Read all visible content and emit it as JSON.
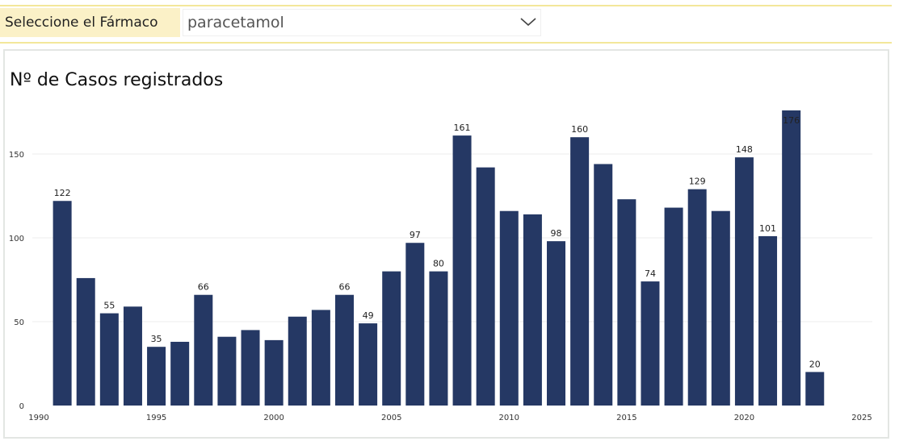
{
  "filter": {
    "label": "Seleccione el Fármaco",
    "selected": "paracetamol"
  },
  "icons": {
    "dropdown": "chevron-down-icon"
  },
  "colors": {
    "bar": "#253864",
    "filter_bg": "#fbf1c7",
    "filter_border": "#f3e79a"
  },
  "chart_data": {
    "type": "bar",
    "title": "Nº de Casos registrados",
    "xlabel": "",
    "ylabel": "",
    "x": [
      1991,
      1992,
      1993,
      1994,
      1995,
      1996,
      1997,
      1998,
      1999,
      2000,
      2001,
      2002,
      2003,
      2004,
      2005,
      2006,
      2007,
      2008,
      2009,
      2010,
      2011,
      2012,
      2013,
      2014,
      2015,
      2016,
      2017,
      2018,
      2019,
      2020,
      2021,
      2022,
      2023
    ],
    "values": [
      122,
      76,
      55,
      59,
      35,
      38,
      66,
      41,
      45,
      39,
      53,
      57,
      66,
      49,
      80,
      97,
      80,
      161,
      142,
      116,
      114,
      98,
      160,
      144,
      123,
      74,
      118,
      129,
      116,
      148,
      101,
      176,
      20
    ],
    "data_labels": [
      {
        "x": 1991,
        "label": "122"
      },
      {
        "x": 1993,
        "label": "55"
      },
      {
        "x": 1995,
        "label": "35"
      },
      {
        "x": 1997,
        "label": "66"
      },
      {
        "x": 2003,
        "label": "66"
      },
      {
        "x": 2004,
        "label": "49"
      },
      {
        "x": 2006,
        "label": "97"
      },
      {
        "x": 2007,
        "label": "80"
      },
      {
        "x": 2008,
        "label": "161"
      },
      {
        "x": 2012,
        "label": "98"
      },
      {
        "x": 2013,
        "label": "160"
      },
      {
        "x": 2016,
        "label": "74"
      },
      {
        "x": 2018,
        "label": "129"
      },
      {
        "x": 2020,
        "label": "148"
      },
      {
        "x": 2021,
        "label": "101"
      },
      {
        "x": 2022,
        "label": "176"
      },
      {
        "x": 2023,
        "label": "20"
      }
    ],
    "xlim": [
      1990,
      2025
    ],
    "ylim": [
      0,
      176
    ],
    "x_ticks": [
      "1990",
      "1995",
      "2000",
      "2005",
      "2010",
      "2015",
      "2020",
      "2025"
    ],
    "y_ticks": [
      "0",
      "50",
      "100",
      "150"
    ],
    "grid": true,
    "legend": "none"
  }
}
